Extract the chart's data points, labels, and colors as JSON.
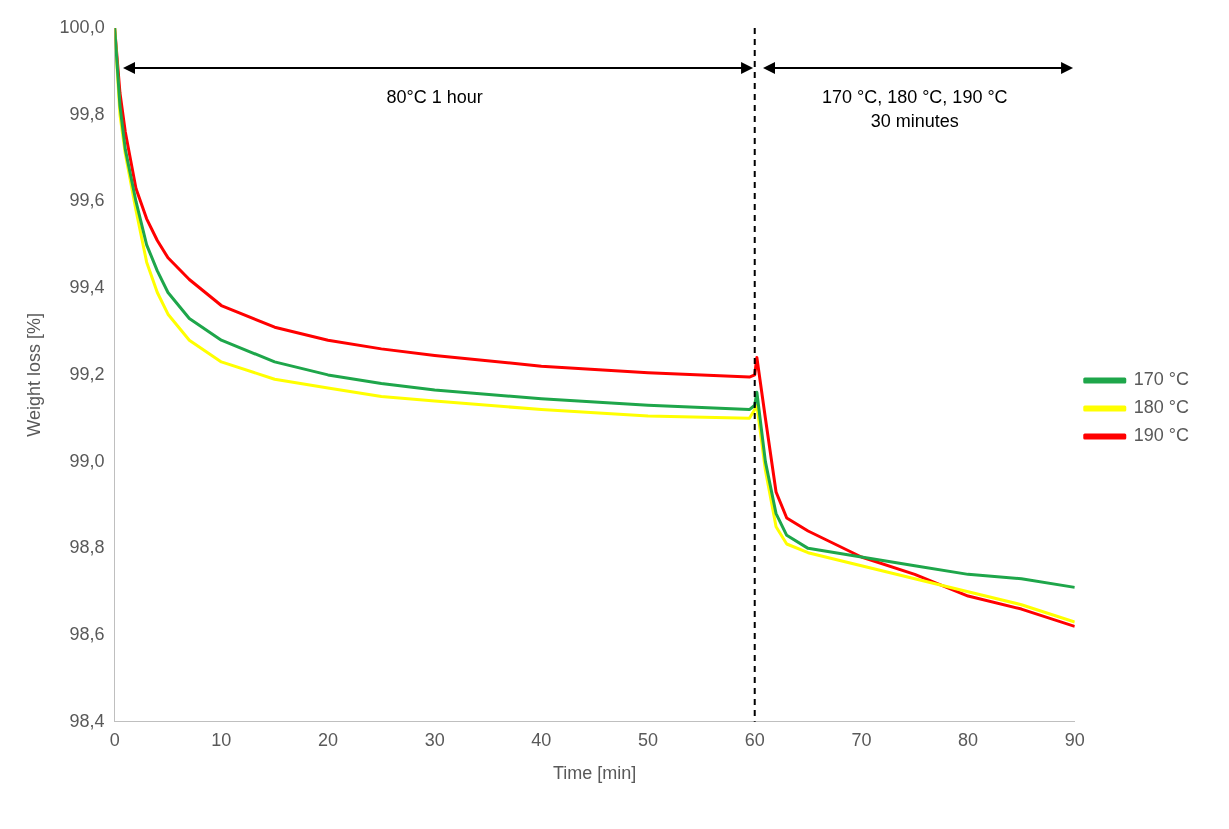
{
  "chart_data": {
    "type": "line",
    "xlabel": "Time [min]",
    "ylabel": "Weight loss [%]",
    "xlim": [
      0,
      90
    ],
    "xticks": [
      0,
      10,
      20,
      30,
      40,
      50,
      60,
      70,
      80,
      90
    ],
    "ylim": [
      98.4,
      100
    ],
    "yticks": [
      {
        "value": 98.4,
        "label": "98,4"
      },
      {
        "value": 98.6,
        "label": "98,6"
      },
      {
        "value": 98.8,
        "label": "98,8"
      },
      {
        "value": 99.0,
        "label": "99,0"
      },
      {
        "value": 99.2,
        "label": "99,2"
      },
      {
        "value": 99.4,
        "label": "99,4"
      },
      {
        "value": 99.6,
        "label": "99,6"
      },
      {
        "value": 99.8,
        "label": "99,8"
      },
      {
        "value": 100,
        "label": "100,0"
      }
    ],
    "grid": false,
    "legend": "right",
    "marker": "none",
    "line_style": "solid",
    "x": [
      0,
      0.5,
      1,
      2,
      3,
      4,
      5,
      7,
      10,
      15,
      20,
      25,
      30,
      40,
      50,
      59.5,
      60,
      60.2,
      61,
      62,
      63,
      65,
      70,
      75,
      80,
      85,
      90
    ],
    "series": [
      {
        "name": "170 °C",
        "color": "#1ea64a",
        "values": [
          100,
          99.82,
          99.72,
          99.6,
          99.5,
          99.44,
          99.39,
          99.33,
          99.28,
          99.23,
          99.2,
          99.18,
          99.165,
          99.145,
          99.13,
          99.12,
          99.13,
          99.16,
          99.0,
          98.88,
          98.83,
          98.8,
          98.78,
          98.76,
          98.74,
          98.73,
          98.71
        ]
      },
      {
        "name": "180 °C",
        "color": "#ffff00",
        "values": [
          100,
          99.8,
          99.71,
          99.58,
          99.46,
          99.39,
          99.34,
          99.28,
          99.23,
          99.19,
          99.17,
          99.15,
          99.14,
          99.12,
          99.105,
          99.1,
          99.12,
          99.13,
          98.98,
          98.85,
          98.81,
          98.79,
          98.76,
          98.73,
          98.7,
          98.67,
          98.63
        ]
      },
      {
        "name": "190 °C",
        "color": "#ff0000",
        "values": [
          100,
          99.85,
          99.76,
          99.63,
          99.56,
          99.51,
          99.47,
          99.42,
          99.36,
          99.31,
          99.28,
          99.26,
          99.245,
          99.22,
          99.205,
          99.195,
          99.2,
          99.24,
          99.1,
          98.93,
          98.87,
          98.84,
          98.78,
          98.74,
          98.69,
          98.66,
          98.62
        ]
      }
    ],
    "ref_lines": [
      {
        "axis": "x",
        "value": 60,
        "color": "#000000",
        "line_style": "dashed"
      }
    ],
    "annotations": [
      "80°C 1 hour",
      "170 °C, 180 °C, 190 °C\n30 minutes"
    ]
  }
}
